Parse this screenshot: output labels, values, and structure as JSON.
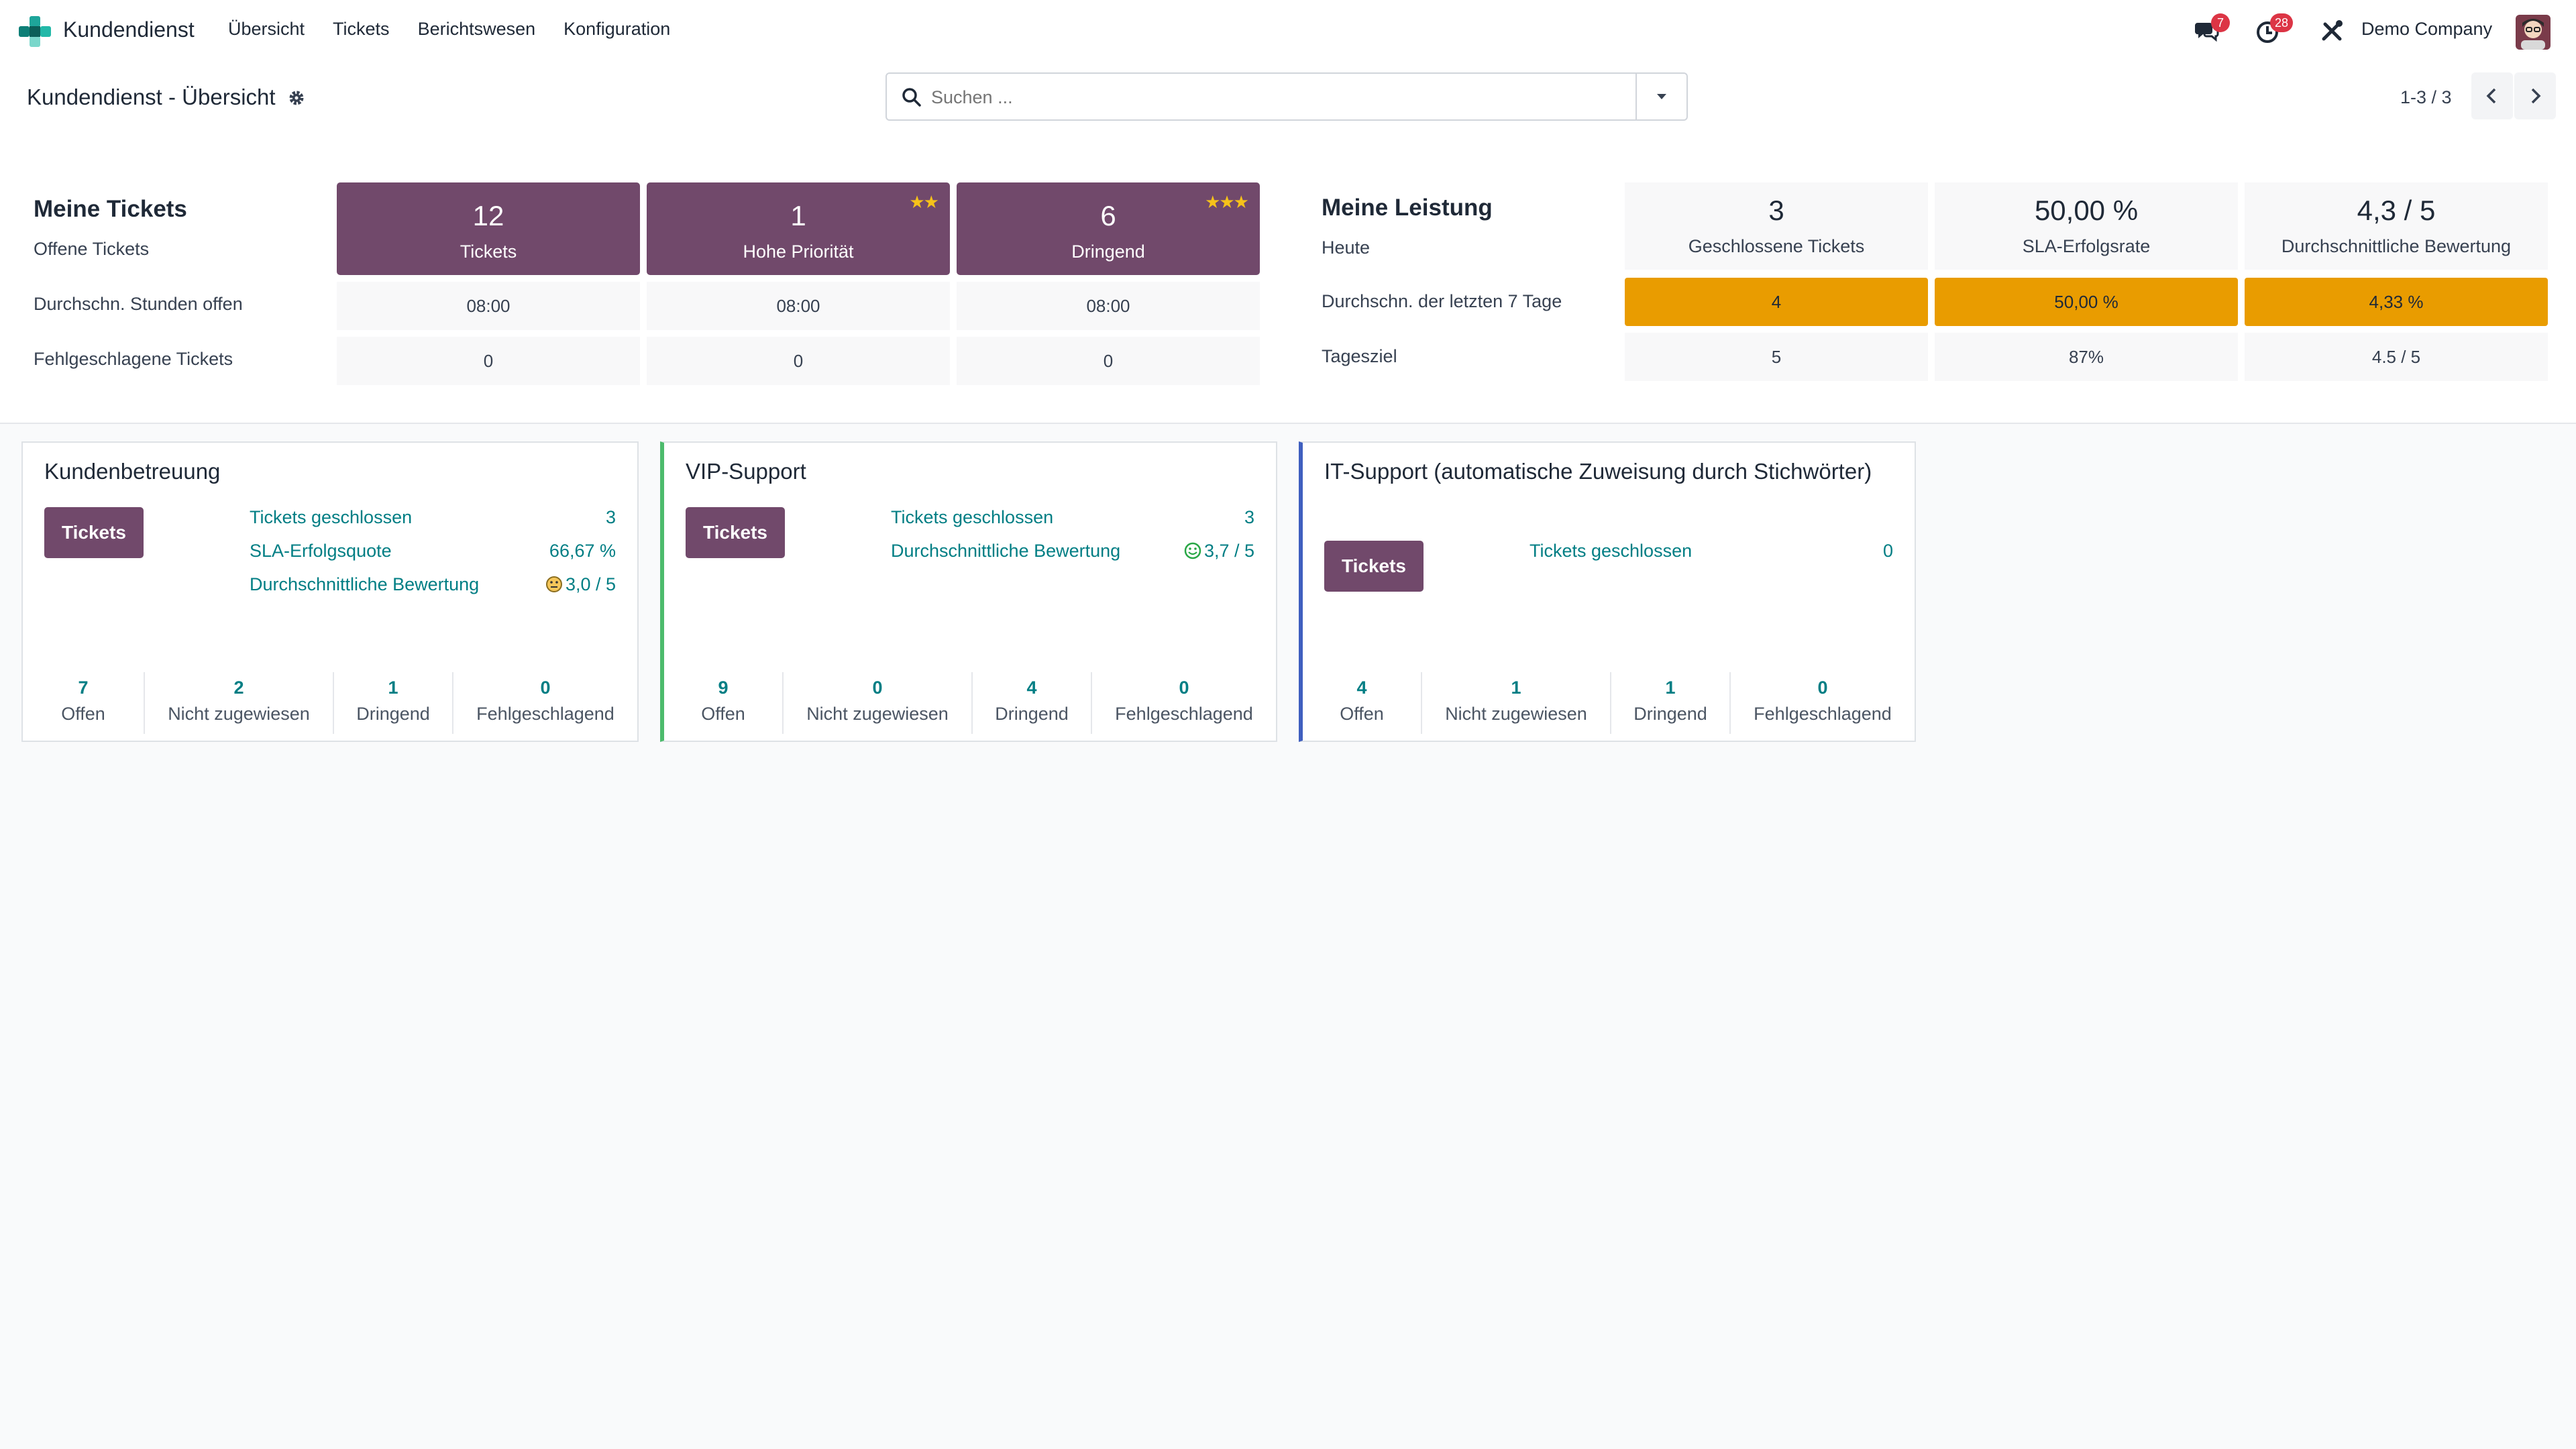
{
  "topbar": {
    "app_name": "Kundendienst",
    "menu": [
      "Übersicht",
      "Tickets",
      "Berichtswesen",
      "Konfiguration"
    ],
    "messages_count": "7",
    "activities_count": "28",
    "company": "Demo Company"
  },
  "control": {
    "title": "Kundendienst - Übersicht",
    "search_placeholder": "Suchen ...",
    "pager": "1-3 / 3"
  },
  "my_tickets": {
    "heading": "Meine Tickets",
    "row_open": "Offene Tickets",
    "row_hours": "Durchschn. Stunden offen",
    "row_failed": "Fehlgeschlagene Tickets",
    "boxes": [
      {
        "count": "12",
        "label": "Tickets",
        "stars": ""
      },
      {
        "count": "1",
        "label": "Hohe Priorität",
        "stars": "★★"
      },
      {
        "count": "6",
        "label": "Dringend",
        "stars": "★★★"
      }
    ],
    "hours": [
      "08:00",
      "08:00",
      "08:00"
    ],
    "failed": [
      "0",
      "0",
      "0"
    ]
  },
  "my_performance": {
    "heading": "Meine Leistung",
    "row_today": "Heute",
    "row_avg": "Durchschn. der letzten 7 Tage",
    "row_goal": "Tagesziel",
    "today": [
      {
        "value": "3",
        "label": "Geschlossene Tickets"
      },
      {
        "value": "50,00 %",
        "label": "SLA-Erfolgsrate"
      },
      {
        "value": "4,3 / 5",
        "label": "Durchschnittliche Bewertung"
      }
    ],
    "avg7": [
      "4",
      "50,00 %",
      "4,33 %"
    ],
    "goal": [
      "5",
      "87%",
      "4.5 / 5"
    ]
  },
  "teams": [
    {
      "title": "Kundenbetreuung",
      "button": "Tickets",
      "stats": [
        {
          "label": "Tickets geschlossen",
          "value": "3"
        },
        {
          "label": "SLA-Erfolgsquote",
          "value": "66,67 %"
        },
        {
          "label": "Durchschnittliche Bewertung",
          "value": "3,0 / 5"
        }
      ],
      "bottom": [
        {
          "n": "7",
          "t": "Offen"
        },
        {
          "n": "2",
          "t": "Nicht zugewiesen"
        },
        {
          "n": "1",
          "t": "Dringend"
        },
        {
          "n": "0",
          "t": "Fehlgeschlagend"
        }
      ]
    },
    {
      "title": "VIP-Support",
      "button": "Tickets",
      "stats": [
        {
          "label": "Tickets geschlossen",
          "value": "3"
        },
        {
          "label": "Durchschnittliche Bewertung",
          "value": "3,7 / 5"
        }
      ],
      "bottom": [
        {
          "n": "9",
          "t": "Offen"
        },
        {
          "n": "0",
          "t": "Nicht zugewiesen"
        },
        {
          "n": "4",
          "t": "Dringend"
        },
        {
          "n": "0",
          "t": "Fehlgeschlagend"
        }
      ]
    },
    {
      "title": "IT-Support (automatische Zuweisung durch Stichwörter)",
      "button": "Tickets",
      "stats": [
        {
          "label": "Tickets geschlossen",
          "value": "0"
        }
      ],
      "bottom": [
        {
          "n": "4",
          "t": "Offen"
        },
        {
          "n": "1",
          "t": "Nicht zugewiesen"
        },
        {
          "n": "1",
          "t": "Dringend"
        },
        {
          "n": "0",
          "t": "Fehlgeschlagend"
        }
      ]
    }
  ],
  "colors": {
    "brand_purple": "#71496b",
    "accent_teal": "#017e84",
    "orange": "#e99c00",
    "vip_border": "#4cbb6c",
    "it_border": "#3f5fbf"
  }
}
